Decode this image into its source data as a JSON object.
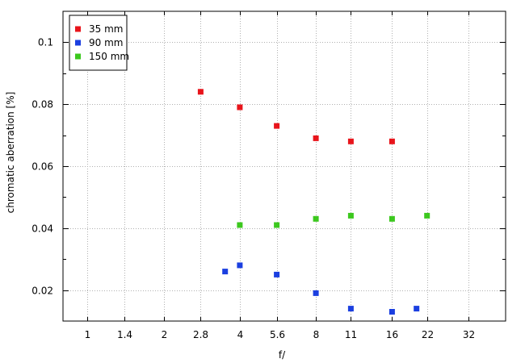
{
  "chart_data": {
    "type": "scatter",
    "xlabel": "f/",
    "ylabel": "chromatic aberration [%]",
    "x_scale": "log2",
    "x_ticks": [
      1,
      1.4,
      2,
      2.8,
      4,
      5.6,
      8,
      11,
      16,
      22,
      32
    ],
    "x_tick_labels": [
      "1",
      "1.4",
      "2",
      "2.8",
      "4",
      "5.6",
      "8",
      "11",
      "16",
      "22",
      "32"
    ],
    "xlim": [
      0.8,
      45
    ],
    "y_ticks": [
      0.02,
      0.04,
      0.06,
      0.08,
      0.1
    ],
    "y_tick_labels": [
      "0.02",
      "0.04",
      "0.06",
      "0.08",
      "0.1"
    ],
    "ylim": [
      0.01,
      0.11
    ],
    "grid": true,
    "legend_position": "top-left",
    "series": [
      {
        "name": "35 mm",
        "color": "#e8141b",
        "points": [
          [
            2.8,
            0.084
          ],
          [
            4,
            0.079
          ],
          [
            5.6,
            0.073
          ],
          [
            8,
            0.069
          ],
          [
            11,
            0.068
          ],
          [
            16,
            0.068
          ]
        ]
      },
      {
        "name": "90 mm",
        "color": "#1b3fe0",
        "points": [
          [
            3.5,
            0.026
          ],
          [
            4,
            0.028
          ],
          [
            5.6,
            0.025
          ],
          [
            8,
            0.019
          ],
          [
            11,
            0.014
          ],
          [
            16,
            0.013
          ],
          [
            20,
            0.014
          ]
        ]
      },
      {
        "name": "150 mm",
        "color": "#3cc81e",
        "points": [
          [
            4,
            0.041
          ],
          [
            5.6,
            0.041
          ],
          [
            8,
            0.043
          ],
          [
            11,
            0.044
          ],
          [
            16,
            0.043
          ],
          [
            22,
            0.044
          ]
        ]
      }
    ]
  }
}
